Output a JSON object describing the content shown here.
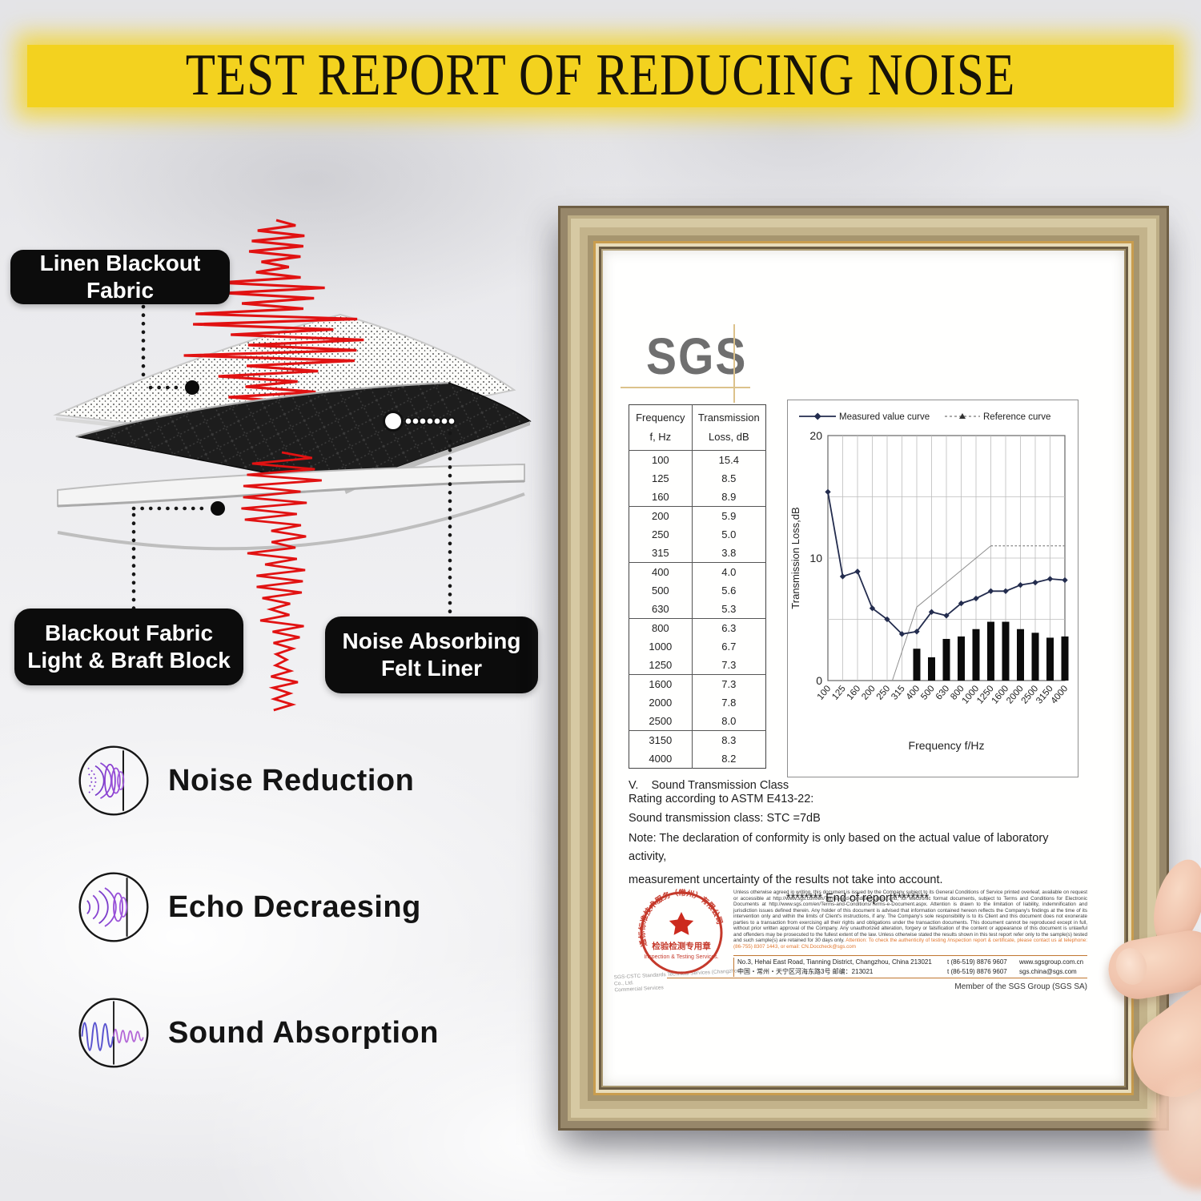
{
  "banner": {
    "title": "TEST REPORT OF REDUCING NOISE"
  },
  "diagram": {
    "labels": {
      "linen": "Linen Blackout Fabric",
      "blackout": "Blackout Fabric\nLight & Braft Block",
      "felt": "Noise Absorbing\nFelt Liner"
    }
  },
  "features": [
    {
      "icon": "noise-reduction-icon",
      "label": "Noise Reduction"
    },
    {
      "icon": "echo-decreasing-icon",
      "label": "Echo Decraesing"
    },
    {
      "icon": "sound-absorption-icon",
      "label": "Sound Absorption"
    }
  ],
  "report": {
    "logo_text": "SGS",
    "table": {
      "col1_header": [
        "Frequency",
        "f, Hz"
      ],
      "col2_header": [
        "Transmission",
        "Loss, dB"
      ],
      "rows": [
        [
          "100",
          "15.4"
        ],
        [
          "125",
          "8.5"
        ],
        [
          "160",
          "8.9"
        ],
        [
          "200",
          "5.9"
        ],
        [
          "250",
          "5.0"
        ],
        [
          "315",
          "3.8"
        ],
        [
          "400",
          "4.0"
        ],
        [
          "500",
          "5.6"
        ],
        [
          "630",
          "5.3"
        ],
        [
          "800",
          "6.3"
        ],
        [
          "1000",
          "6.7"
        ],
        [
          "1250",
          "7.3"
        ],
        [
          "1600",
          "7.3"
        ],
        [
          "2000",
          "7.8"
        ],
        [
          "2500",
          "8.0"
        ],
        [
          "3150",
          "8.3"
        ],
        [
          "4000",
          "8.2"
        ]
      ]
    },
    "section_v": {
      "heading": "V.    Sound Transmission Class\nRating according to ASTM E413-22:",
      "stc": "Sound transmission class: STC =7dB",
      "note1": "Note: The declaration of conformity is only based on the actual value of laboratory activity,",
      "note2": "measurement uncertainty of the results not take into account.",
      "end": "******** End of report********"
    },
    "stamp": {
      "ring_text": "通标标准技术服务（常州）有限公司",
      "line1": "检验检测专用章",
      "line2": "Inspection & Testing Services.",
      "gray_line1": "SGS-CSTC Standards Technical Services (Changzhou) Co., Ltd.",
      "gray_line2": "Commercial Services"
    },
    "fineprint": "Unless otherwise agreed in writing, this document is issued by the Company subject to its General Conditions of Service printed overleaf, available on request or accessible at http://www.sgs.com/en/Terms-and-Conditions.aspx and, for electronic format documents, subject to Terms and Conditions for Electronic Documents at http://www.sgs.com/en/Terms-and-Conditions/Terms-e-Document.aspx. Attention is drawn to the limitation of liability, indemnification and jurisdiction issues defined therein. Any holder of this document is advised that information contained hereon reflects the Company's findings at the time of its intervention only and within the limits of Client's instructions, if any. The Company's sole responsibility is to its Client and this document does not exonerate parties to a transaction from exercising all their rights and obligations under the transaction documents. This document cannot be reproduced except in full, without prior written approval of the Company. Any unauthorized alteration, forgery or falsification of the content or appearance of this document is unlawful and offenders may be prosecuted to the fullest extent of the law. Unless otherwise stated the results shown in this test report refer only to the sample(s) tested and such sample(s) are retained for 30 days only.",
    "attention": "Attention: To check the authenticity of testing /inspection report & certificate, please contact us at telephone: (86-755) 8307 1443, or email: CN.Doccheck@sgs.com",
    "address": {
      "en": "No.3, Hehai East Road, Tianning District, Changzhou, China  213021",
      "cn": "中国・常州・天宁区河海东路3号    邮编：213021",
      "phone1": "t (86-519) 8876 9607",
      "phone2": "t (86-519) 8876 9607",
      "web": "www.sgsgroup.com.cn",
      "email": "sgs.china@sgs.com"
    },
    "member": "Member of the SGS Group (SGS SA)"
  },
  "chart_data": {
    "type": "line",
    "title": "",
    "categories": [
      "100",
      "125",
      "160",
      "200",
      "250",
      "315",
      "400",
      "500",
      "630",
      "800",
      "1000",
      "1250",
      "1600",
      "2000",
      "2500",
      "3150",
      "4000"
    ],
    "series": [
      {
        "name": "Measured value curve",
        "type": "line",
        "values": [
          15.4,
          8.5,
          8.9,
          5.9,
          5.0,
          3.8,
          4.0,
          5.6,
          5.3,
          6.3,
          6.7,
          7.3,
          7.3,
          7.8,
          8.0,
          8.3,
          8.2
        ]
      },
      {
        "name": "Reference curve",
        "type": "line",
        "points_index_value": [
          [
            4.35,
            0
          ],
          [
            6,
            6
          ],
          [
            11,
            11
          ],
          [
            16,
            11
          ]
        ],
        "dashed_from_index": 11
      },
      {
        "name": "difference-bars",
        "type": "bar",
        "start_category": "400",
        "values": [
          2.6,
          1.9,
          3.4,
          3.6,
          4.2,
          4.8,
          4.8,
          4.2,
          3.9,
          3.5,
          3.6
        ]
      }
    ],
    "legend": [
      "Measured value curve",
      "Reference curve"
    ],
    "legend_position": "top",
    "xlabel": "Frequency f/Hz",
    "ylabel": "Transmission Loss,dB",
    "ylim": [
      0,
      20
    ],
    "yticks": [
      0,
      10,
      20
    ],
    "gridlines_y": [
      5,
      10,
      15
    ],
    "grid": true
  }
}
